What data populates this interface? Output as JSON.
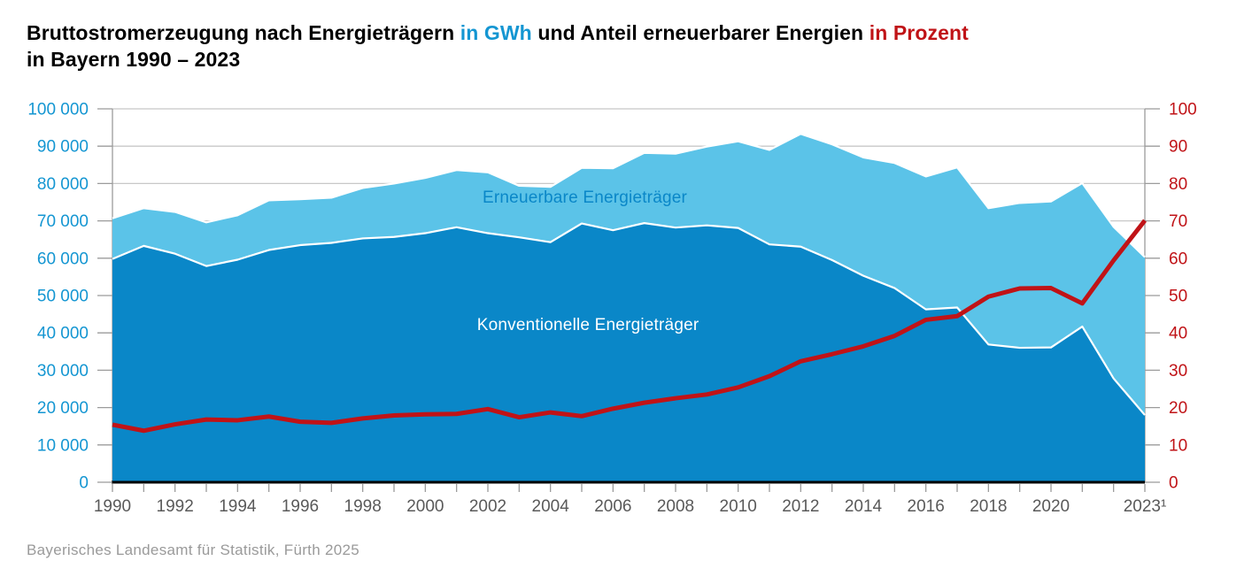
{
  "title": {
    "part1": "Bruttostromerzeugung nach Energieträgern",
    "accent_gwh": "in GWh",
    "part2": "und Anteil erneuerbarer Energien",
    "accent_pct": "in Prozent",
    "line2": "in Bayern 1990 – 2023"
  },
  "footer": "Bayerisches Landesamt für Statistik, Fürth 2025",
  "colors": {
    "dark_blue_area": "#0a87c8",
    "light_blue_area": "#5bc3e8",
    "red_line": "#c01317",
    "axis_blue_text": "#1496d2",
    "axis_red_text": "#c01317",
    "year_label_gray": "#595959",
    "footer_gray": "#9a9a9a",
    "gridline_gray": "#c8c8c8",
    "axis_line_gray": "#9b9b9b",
    "baseline_black": "#000000",
    "boundary_white": "#ffffff"
  },
  "chart_data": {
    "type": "area",
    "title": "Bruttostromerzeugung nach Energieträgern in GWh und Anteil erneuerbarer Energien in Prozent in Bayern 1990 – 2023",
    "x_label": "",
    "x": [
      1990,
      1991,
      1992,
      1993,
      1994,
      1995,
      1996,
      1997,
      1998,
      1999,
      2000,
      2001,
      2002,
      2003,
      2004,
      2005,
      2006,
      2007,
      2008,
      2009,
      2010,
      2011,
      2012,
      2013,
      2014,
      2015,
      2016,
      2017,
      2018,
      2019,
      2020,
      2021,
      2022,
      2023
    ],
    "series": [
      {
        "name": "Konventionelle Energieträger",
        "type": "area",
        "axis": "left",
        "stack": 1,
        "values": [
          59800,
          63300,
          61200,
          57900,
          59600,
          62200,
          63500,
          64100,
          65300,
          65700,
          66700,
          68300,
          66700,
          65600,
          64300,
          69300,
          67500,
          69400,
          68200,
          68800,
          68100,
          63700,
          63100,
          59500,
          55300,
          52000,
          46300,
          46800,
          36900,
          36000,
          36100,
          41700,
          27800,
          18000
        ]
      },
      {
        "name": "Erneuerbare Energieträger",
        "type": "area",
        "axis": "left",
        "stack": 2,
        "values": [
          10900,
          10100,
          11200,
          11700,
          11900,
          13300,
          12300,
          12100,
          13500,
          14300,
          14800,
          15300,
          16300,
          13800,
          14800,
          14900,
          16600,
          18800,
          19800,
          21100,
          23200,
          25300,
          30200,
          31000,
          31700,
          33500,
          35600,
          37500,
          36500,
          38800,
          39100,
          38400,
          40600,
          42300
        ]
      },
      {
        "name": "Anteil erneuerbarer Energien",
        "type": "line",
        "axis": "right",
        "values": [
          15.4,
          13.8,
          15.5,
          16.8,
          16.6,
          17.6,
          16.2,
          15.9,
          17.1,
          17.9,
          18.2,
          18.3,
          19.6,
          17.4,
          18.7,
          17.7,
          19.7,
          21.3,
          22.5,
          23.5,
          25.4,
          28.4,
          32.4,
          34.3,
          36.4,
          39.2,
          43.5,
          44.5,
          49.7,
          51.9,
          52.0,
          47.9,
          59.4,
          70.1
        ]
      }
    ],
    "left_axis": {
      "min": 0,
      "max": 100000,
      "step": 10000,
      "unit": "GWh",
      "tick_labels": [
        "0",
        "10 000",
        "20 000",
        "30 000",
        "40 000",
        "50 000",
        "60 000",
        "70 000",
        "80 000",
        "90 000",
        "100 000"
      ]
    },
    "right_axis": {
      "min": 0,
      "max": 100,
      "step": 10,
      "unit": "Prozent",
      "tick_labels": [
        "0",
        "10",
        "20",
        "30",
        "40",
        "50",
        "60",
        "70",
        "80",
        "90",
        "100"
      ]
    },
    "x_tick_labels": [
      {
        "year": 1990,
        "label": "1990"
      },
      {
        "year": 1992,
        "label": "1992"
      },
      {
        "year": 1994,
        "label": "1994"
      },
      {
        "year": 1996,
        "label": "1996"
      },
      {
        "year": 1998,
        "label": "1998"
      },
      {
        "year": 2000,
        "label": "2000"
      },
      {
        "year": 2002,
        "label": "2002"
      },
      {
        "year": 2004,
        "label": "2004"
      },
      {
        "year": 2006,
        "label": "2006"
      },
      {
        "year": 2008,
        "label": "2008"
      },
      {
        "year": 2010,
        "label": "2010"
      },
      {
        "year": 2012,
        "label": "2012"
      },
      {
        "year": 2014,
        "label": "2014"
      },
      {
        "year": 2016,
        "label": "2016"
      },
      {
        "year": 2018,
        "label": "2018"
      },
      {
        "year": 2020,
        "label": "2020"
      },
      {
        "year": 2023,
        "label": "2023¹"
      }
    ],
    "annotations": [
      {
        "text": "Erneuerbare Energieträger",
        "x_year": 2005.1,
        "y_value": 76000,
        "color": "#0a87c8"
      },
      {
        "text": "Konventionelle Energieträger",
        "x_year": 2005.2,
        "y_value": 42000,
        "color": "#ffffff"
      }
    ],
    "grid": true,
    "legend_position": "inside-areas"
  }
}
